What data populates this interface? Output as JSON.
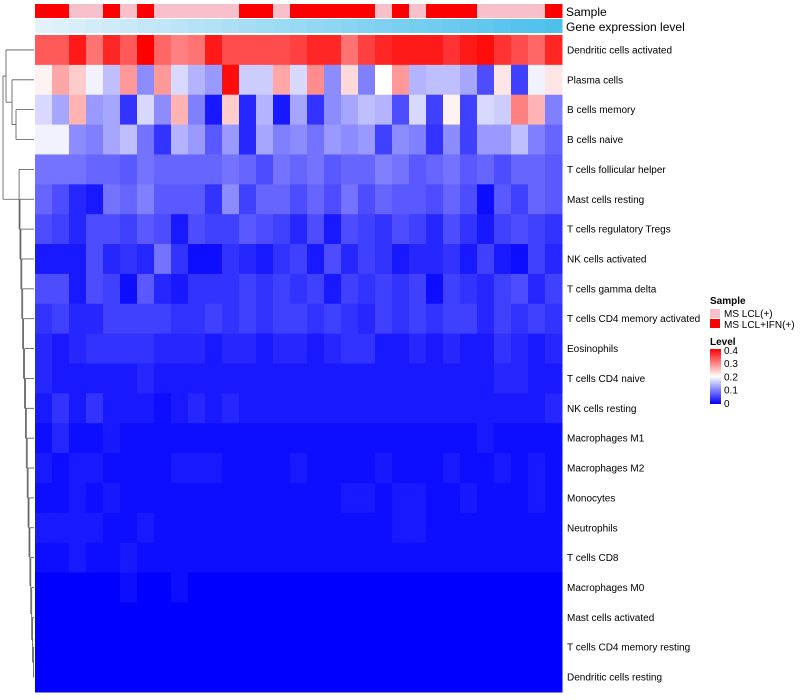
{
  "chart_data": {
    "type": "heatmap",
    "annotation_tracks": [
      "Sample",
      "Gene expression level"
    ],
    "rows": [
      "Dendritic cells activated",
      "Plasma cells",
      "B cells memory",
      "B cells naive",
      "T cells follicular helper",
      "Mast cells resting",
      "T cells regulatory  Tregs",
      "NK cells activated",
      "T cells gamma delta",
      "T cells CD4 memory activated",
      "Eosinophils",
      "T cells CD4 naive",
      "NK cells resting",
      "Macrophages M1",
      "Macrophages M2",
      "Monocytes",
      "Neutrophils",
      "T cells CD8",
      "Macrophages M0",
      "Mast cells activated",
      "T cells CD4 memory resting",
      "Dendritic cells resting"
    ],
    "n_columns": 31,
    "sample_groups": [
      1,
      1,
      0,
      0,
      1,
      0,
      1,
      0,
      0,
      0,
      0,
      0,
      1,
      1,
      0,
      1,
      1,
      1,
      1,
      1,
      0,
      1,
      0,
      1,
      1,
      1,
      0,
      0,
      0,
      0,
      1
    ],
    "gene_expression_level": [
      0.0,
      0.03,
      0.06,
      0.1,
      0.13,
      0.16,
      0.2,
      0.23,
      0.26,
      0.3,
      0.33,
      0.36,
      0.4,
      0.43,
      0.46,
      0.5,
      0.53,
      0.56,
      0.6,
      0.63,
      0.66,
      0.7,
      0.73,
      0.76,
      0.8,
      0.83,
      0.86,
      0.9,
      0.93,
      0.96,
      1.0
    ],
    "values": [
      [
        0.33,
        0.33,
        0.38,
        0.31,
        0.37,
        0.33,
        0.4,
        0.32,
        0.3,
        0.31,
        0.38,
        0.34,
        0.34,
        0.34,
        0.34,
        0.35,
        0.37,
        0.37,
        0.31,
        0.35,
        0.37,
        0.38,
        0.38,
        0.38,
        0.36,
        0.38,
        0.39,
        0.36,
        0.34,
        0.32,
        0.37
      ],
      [
        0.21,
        0.27,
        0.24,
        0.19,
        0.15,
        0.28,
        0.11,
        0.28,
        0.17,
        0.14,
        0.12,
        0.39,
        0.16,
        0.16,
        0.27,
        0.17,
        0.29,
        0.11,
        0.23,
        0.1,
        0.2,
        0.28,
        0.14,
        0.15,
        0.15,
        0.13,
        0.06,
        0.22,
        0.05,
        0.19,
        0.22
      ],
      [
        0.17,
        0.13,
        0.26,
        0.12,
        0.13,
        0.04,
        0.17,
        0.11,
        0.26,
        0.1,
        0.02,
        0.24,
        0.03,
        0.14,
        0.02,
        0.13,
        0.04,
        0.11,
        0.13,
        0.15,
        0.14,
        0.06,
        0.17,
        0.05,
        0.21,
        0.05,
        0.17,
        0.16,
        0.3,
        0.26,
        0.1
      ],
      [
        0.19,
        0.19,
        0.11,
        0.1,
        0.13,
        0.15,
        0.09,
        0.04,
        0.14,
        0.12,
        0.07,
        0.12,
        0.03,
        0.13,
        0.1,
        0.11,
        0.09,
        0.12,
        0.11,
        0.12,
        0.05,
        0.11,
        0.1,
        0.04,
        0.11,
        0.05,
        0.12,
        0.12,
        0.15,
        0.1,
        0.08
      ],
      [
        0.09,
        0.09,
        0.09,
        0.08,
        0.08,
        0.07,
        0.09,
        0.08,
        0.08,
        0.08,
        0.08,
        0.09,
        0.08,
        0.06,
        0.09,
        0.08,
        0.09,
        0.07,
        0.08,
        0.08,
        0.1,
        0.09,
        0.07,
        0.08,
        0.09,
        0.07,
        0.08,
        0.06,
        0.08,
        0.08,
        0.07
      ],
      [
        0.08,
        0.06,
        0.03,
        0.02,
        0.09,
        0.08,
        0.1,
        0.07,
        0.07,
        0.07,
        0.04,
        0.11,
        0.05,
        0.08,
        0.08,
        0.06,
        0.08,
        0.06,
        0.09,
        0.06,
        0.08,
        0.07,
        0.07,
        0.06,
        0.08,
        0.06,
        0.01,
        0.07,
        0.05,
        0.08,
        0.07
      ],
      [
        0.06,
        0.05,
        0.03,
        0.06,
        0.06,
        0.05,
        0.07,
        0.06,
        0.02,
        0.06,
        0.05,
        0.05,
        0.07,
        0.06,
        0.05,
        0.03,
        0.06,
        0.02,
        0.06,
        0.05,
        0.04,
        0.06,
        0.05,
        0.03,
        0.06,
        0.04,
        0.02,
        0.05,
        0.06,
        0.05,
        0.04
      ],
      [
        0.02,
        0.02,
        0.02,
        0.06,
        0.03,
        0.04,
        0.03,
        0.09,
        0.04,
        0.01,
        0.01,
        0.04,
        0.03,
        0.02,
        0.04,
        0.05,
        0.02,
        0.06,
        0.03,
        0.05,
        0.04,
        0.02,
        0.03,
        0.03,
        0.04,
        0.02,
        0.05,
        0.02,
        0.01,
        0.05,
        0.03
      ],
      [
        0.06,
        0.06,
        0.02,
        0.06,
        0.05,
        0.01,
        0.07,
        0.03,
        0.02,
        0.04,
        0.04,
        0.04,
        0.05,
        0.04,
        0.05,
        0.04,
        0.05,
        0.02,
        0.05,
        0.04,
        0.05,
        0.04,
        0.05,
        0.01,
        0.05,
        0.04,
        0.03,
        0.05,
        0.06,
        0.03,
        0.05
      ],
      [
        0.04,
        0.05,
        0.03,
        0.03,
        0.05,
        0.05,
        0.05,
        0.05,
        0.04,
        0.04,
        0.05,
        0.04,
        0.05,
        0.04,
        0.05,
        0.05,
        0.04,
        0.05,
        0.04,
        0.03,
        0.05,
        0.04,
        0.05,
        0.04,
        0.05,
        0.05,
        0.03,
        0.05,
        0.04,
        0.05,
        0.04
      ],
      [
        0.03,
        0.02,
        0.03,
        0.04,
        0.04,
        0.04,
        0.04,
        0.03,
        0.03,
        0.03,
        0.02,
        0.03,
        0.03,
        0.02,
        0.03,
        0.03,
        0.02,
        0.03,
        0.04,
        0.04,
        0.02,
        0.02,
        0.03,
        0.02,
        0.03,
        0.02,
        0.02,
        0.04,
        0.03,
        0.02,
        0.03
      ],
      [
        0.03,
        0.02,
        0.02,
        0.02,
        0.02,
        0.02,
        0.03,
        0.02,
        0.02,
        0.02,
        0.02,
        0.02,
        0.02,
        0.02,
        0.02,
        0.02,
        0.02,
        0.02,
        0.02,
        0.02,
        0.02,
        0.02,
        0.02,
        0.02,
        0.02,
        0.02,
        0.02,
        0.03,
        0.03,
        0.02,
        0.02
      ],
      [
        0.02,
        0.04,
        0.02,
        0.04,
        0.02,
        0.02,
        0.02,
        0.01,
        0.02,
        0.03,
        0.02,
        0.03,
        0.02,
        0.02,
        0.02,
        0.02,
        0.02,
        0.02,
        0.02,
        0.02,
        0.02,
        0.02,
        0.02,
        0.02,
        0.02,
        0.02,
        0.02,
        0.02,
        0.02,
        0.02,
        0.03
      ],
      [
        0.01,
        0.03,
        0.01,
        0.01,
        0.02,
        0.01,
        0.01,
        0.01,
        0.01,
        0.01,
        0.01,
        0.01,
        0.01,
        0.01,
        0.01,
        0.01,
        0.01,
        0.01,
        0.01,
        0.01,
        0.01,
        0.01,
        0.01,
        0.01,
        0.01,
        0.01,
        0.02,
        0.01,
        0.01,
        0.01,
        0.01
      ],
      [
        0.02,
        0.01,
        0.02,
        0.02,
        0.01,
        0.01,
        0.01,
        0.01,
        0.02,
        0.02,
        0.02,
        0.01,
        0.01,
        0.01,
        0.01,
        0.02,
        0.01,
        0.01,
        0.01,
        0.01,
        0.02,
        0.01,
        0.01,
        0.01,
        0.02,
        0.01,
        0.01,
        0.02,
        0.01,
        0.02,
        0.01
      ],
      [
        0.01,
        0.01,
        0.02,
        0.01,
        0.02,
        0.01,
        0.01,
        0.01,
        0.01,
        0.01,
        0.01,
        0.01,
        0.01,
        0.01,
        0.01,
        0.01,
        0.01,
        0.01,
        0.02,
        0.02,
        0.01,
        0.02,
        0.02,
        0.01,
        0.01,
        0.02,
        0.01,
        0.01,
        0.01,
        0.02,
        0.01
      ],
      [
        0.02,
        0.02,
        0.02,
        0.02,
        0.01,
        0.01,
        0.02,
        0.01,
        0.01,
        0.01,
        0.01,
        0.01,
        0.01,
        0.01,
        0.01,
        0.01,
        0.01,
        0.01,
        0.01,
        0.01,
        0.01,
        0.02,
        0.02,
        0.01,
        0.01,
        0.01,
        0.01,
        0.01,
        0.01,
        0.01,
        0.01
      ],
      [
        0.01,
        0.01,
        0.02,
        0.01,
        0.01,
        0.02,
        0.01,
        0.01,
        0.01,
        0.01,
        0.01,
        0.01,
        0.01,
        0.01,
        0.01,
        0.01,
        0.01,
        0.01,
        0.01,
        0.01,
        0.01,
        0.01,
        0.01,
        0.01,
        0.01,
        0.01,
        0.01,
        0.01,
        0.01,
        0.01,
        0.01
      ],
      [
        0.0,
        0.0,
        0.0,
        0.0,
        0.0,
        0.01,
        0.0,
        0.0,
        0.01,
        0.0,
        0.0,
        0.0,
        0.0,
        0.0,
        0.0,
        0.0,
        0.0,
        0.0,
        0.0,
        0.0,
        0.0,
        0.0,
        0.0,
        0.0,
        0.0,
        0.0,
        0.0,
        0.0,
        0.0,
        0.0,
        0.0
      ],
      [
        0.0,
        0.0,
        0.0,
        0.0,
        0.0,
        0.0,
        0.0,
        0.0,
        0.0,
        0.0,
        0.0,
        0.0,
        0.0,
        0.0,
        0.0,
        0.0,
        0.0,
        0.0,
        0.0,
        0.0,
        0.0,
        0.0,
        0.0,
        0.0,
        0.0,
        0.0,
        0.0,
        0.0,
        0.0,
        0.0,
        0.0
      ],
      [
        0.0,
        0.0,
        0.0,
        0.0,
        0.0,
        0.0,
        0.0,
        0.0,
        0.0,
        0.0,
        0.0,
        0.0,
        0.0,
        0.0,
        0.0,
        0.0,
        0.0,
        0.0,
        0.0,
        0.0,
        0.0,
        0.0,
        0.0,
        0.0,
        0.0,
        0.0,
        0.0,
        0.0,
        0.0,
        0.0,
        0.0
      ],
      [
        0.0,
        0.0,
        0.0,
        0.0,
        0.0,
        0.0,
        0.0,
        0.0,
        0.0,
        0.0,
        0.0,
        0.0,
        0.0,
        0.0,
        0.0,
        0.0,
        0.0,
        0.0,
        0.0,
        0.0,
        0.0,
        0.0,
        0.0,
        0.0,
        0.0,
        0.0,
        0.0,
        0.0,
        0.0,
        0.0,
        0.0
      ]
    ],
    "color_range": [
      0,
      0.4
    ],
    "colors": {
      "low": "#0000ff",
      "mid": "#ffffff",
      "high": "#ff0000"
    },
    "legend": {
      "sample_title": "Sample",
      "sample_entries": [
        {
          "label": "MS LCL(+)",
          "color": "#f8c0cb"
        },
        {
          "label": "MS LCL+IFN(+)",
          "color": "#ff0000"
        }
      ],
      "level_title": "Level",
      "level_ticks": [
        "0.4",
        "0.3",
        "0.2",
        "0.1",
        "0"
      ],
      "placement": "right"
    },
    "expression_colors": {
      "start": "#e2f1fa",
      "end": "#4dc0ec"
    }
  }
}
